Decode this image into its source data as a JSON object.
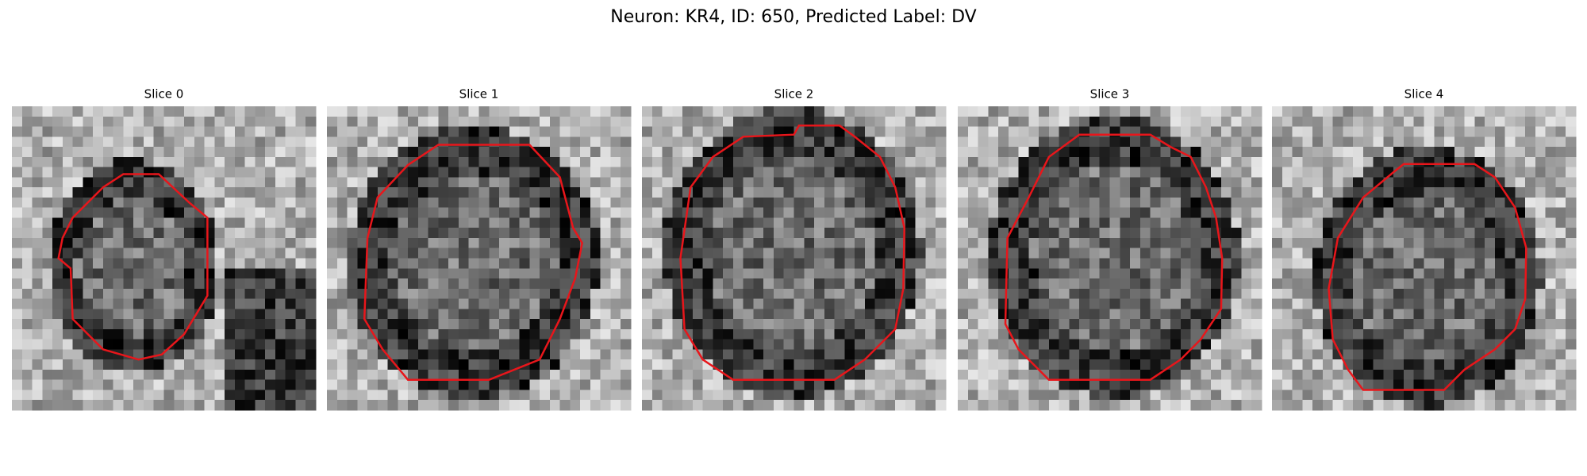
{
  "title": "Neuron: KR4, ID: 650, Predicted Label: DV",
  "panels": [
    {
      "title": "Slice 0"
    },
    {
      "title": "Slice 1"
    },
    {
      "title": "Slice 2"
    },
    {
      "title": "Slice 3"
    },
    {
      "title": "Slice 4"
    }
  ]
}
